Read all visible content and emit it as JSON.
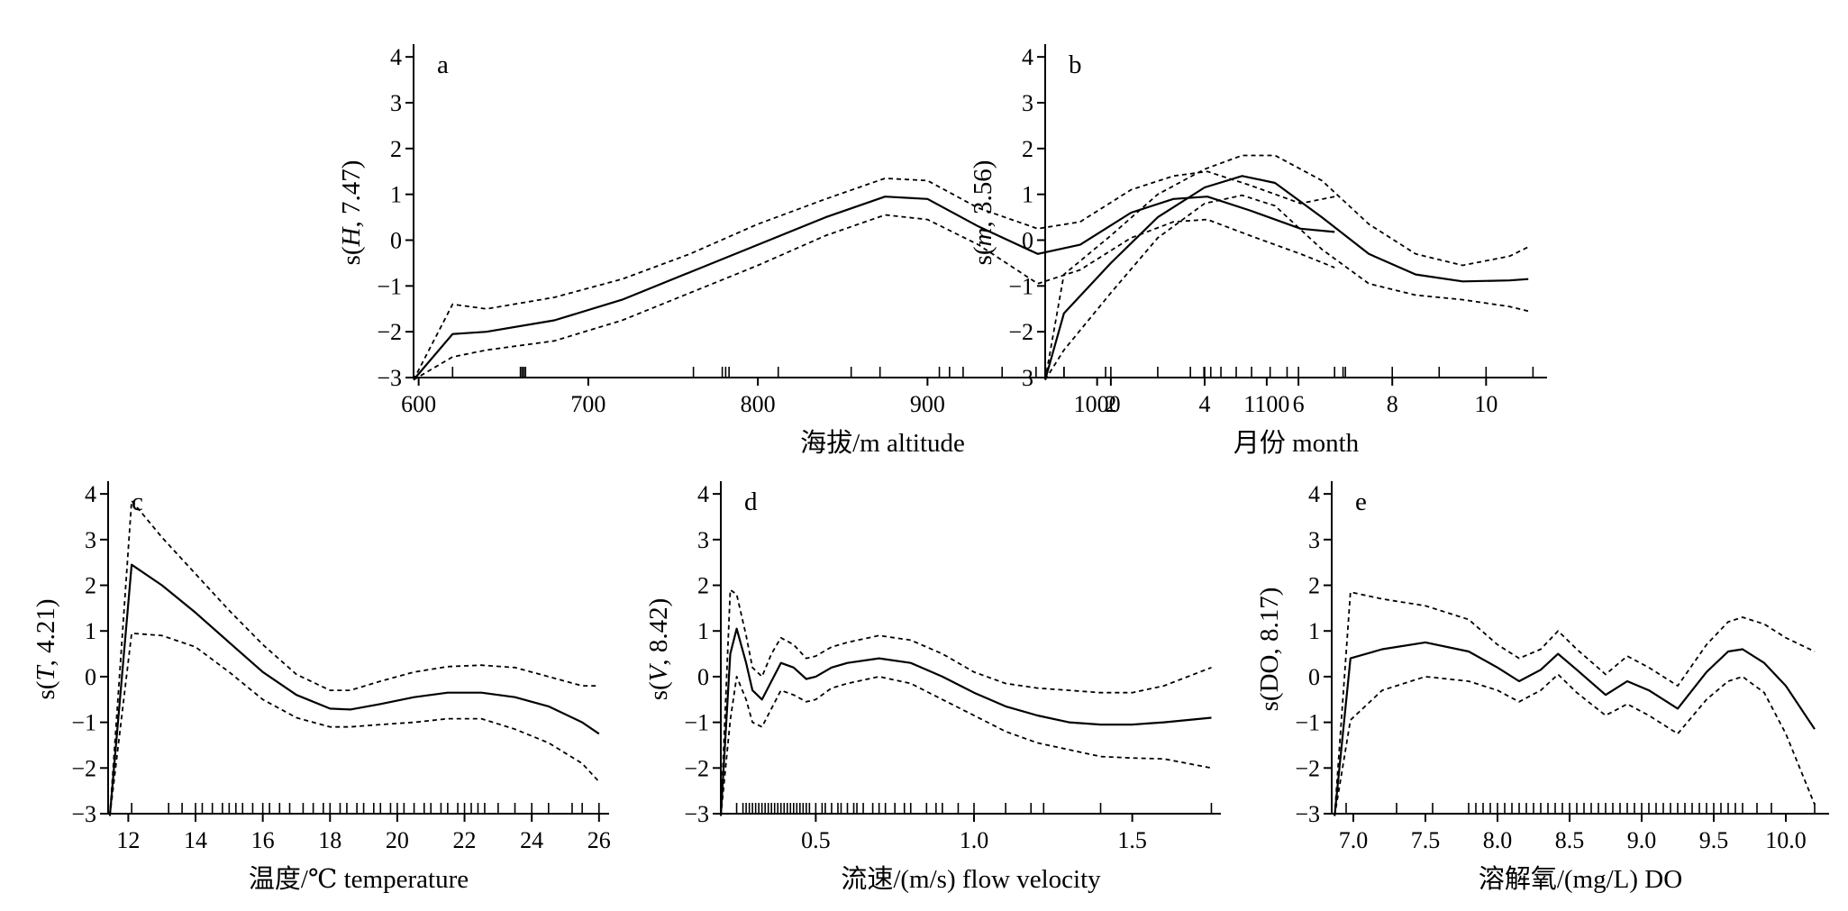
{
  "figure": {
    "panels": [
      {
        "id": "a",
        "panel_label": "a",
        "xlabel": "海拔/m altitude",
        "ylabel_prefix": "s(",
        "ylabel_var": "H",
        "ylabel_suffix": ", 7.47)",
        "xlim": [
          597,
          1150
        ],
        "ylim": [
          -3,
          4.2
        ],
        "xticks": [
          600,
          700,
          800,
          900,
          1000,
          1100
        ],
        "xtick_labels": [
          "600",
          "700",
          "800",
          "900",
          "1000",
          "1100"
        ],
        "yticks": [
          -3,
          -2,
          -1,
          0,
          1,
          2,
          3,
          4
        ],
        "ytick_labels": [
          "−3",
          "−2",
          "−1",
          "0",
          "1",
          "2",
          "3",
          "4"
        ]
      },
      {
        "id": "b",
        "panel_label": "b",
        "xlabel": "月份 month",
        "ylabel_prefix": "s(",
        "ylabel_var": "m",
        "ylabel_suffix": ", 3.56)",
        "xlim": [
          0.6,
          11.3
        ],
        "ylim": [
          -3,
          4.2
        ],
        "xticks": [
          2,
          4,
          6,
          8,
          10
        ],
        "xtick_labels": [
          "2",
          "4",
          "6",
          "8",
          "10"
        ],
        "yticks": [
          -3,
          -2,
          -1,
          0,
          1,
          2,
          3,
          4
        ],
        "ytick_labels": [
          "−3",
          "−2",
          "−1",
          "0",
          "1",
          "2",
          "3",
          "4"
        ]
      },
      {
        "id": "c",
        "panel_label": "c",
        "xlabel": "温度/℃  temperature",
        "ylabel_prefix": "s(",
        "ylabel_var": "T",
        "ylabel_suffix": ", 4.21)",
        "xlim": [
          11.4,
          26.3
        ],
        "ylim": [
          -3,
          4.2
        ],
        "xticks": [
          12,
          14,
          16,
          18,
          20,
          22,
          24,
          26
        ],
        "xtick_labels": [
          "12",
          "14",
          "16",
          "18",
          "20",
          "22",
          "24",
          "26"
        ],
        "yticks": [
          -3,
          -2,
          -1,
          0,
          1,
          2,
          3,
          4
        ],
        "ytick_labels": [
          "−3",
          "−2",
          "−1",
          "0",
          "1",
          "2",
          "3",
          "4"
        ]
      },
      {
        "id": "d",
        "panel_label": "d",
        "xlabel": "流速/(m/s) flow velocity",
        "ylabel_prefix": "s(",
        "ylabel_var": "V",
        "ylabel_suffix": ", 8.42)",
        "xlim": [
          0.2,
          1.78
        ],
        "ylim": [
          -3,
          4.2
        ],
        "xticks": [
          0.5,
          1.0,
          1.5
        ],
        "xtick_labels": [
          "0.5",
          "1.0",
          "1.5"
        ],
        "yticks": [
          -3,
          -2,
          -1,
          0,
          1,
          2,
          3,
          4
        ],
        "ytick_labels": [
          "−3",
          "−2",
          "−1",
          "0",
          "1",
          "2",
          "3",
          "4"
        ]
      },
      {
        "id": "e",
        "panel_label": "e",
        "xlabel": "溶解氧/(mg/L) DO",
        "ylabel_prefix": "s(",
        "ylabel_var": "DO",
        "ylabel_suffix": ", 8.17)",
        "xlim": [
          6.85,
          10.3
        ],
        "ylim": [
          -3,
          4.2
        ],
        "xticks": [
          7.0,
          7.5,
          8.0,
          8.5,
          9.0,
          9.5,
          10.0
        ],
        "xtick_labels": [
          "7.0",
          "7.5",
          "8.0",
          "8.5",
          "9.0",
          "9.5",
          "10.0"
        ],
        "yticks": [
          -3,
          -2,
          -1,
          0,
          1,
          2,
          3,
          4
        ],
        "ytick_labels": [
          "−3",
          "−2",
          "−1",
          "0",
          "1",
          "2",
          "3",
          "4"
        ]
      }
    ]
  },
  "chart_data": [
    {
      "type": "line",
      "panel": "a",
      "series": [
        {
          "role": "fit",
          "style": "solid",
          "x": [
            597,
            620,
            640,
            680,
            720,
            760,
            800,
            840,
            875,
            900,
            930,
            965,
            990,
            1020,
            1045,
            1065,
            1090,
            1120,
            1140
          ],
          "y": [
            -3.05,
            -2.05,
            -2.0,
            -1.75,
            -1.3,
            -0.7,
            -0.1,
            0.5,
            0.95,
            0.9,
            0.3,
            -0.3,
            -0.1,
            0.6,
            0.9,
            0.95,
            0.65,
            0.25,
            0.18
          ]
        },
        {
          "role": "upper",
          "style": "dashed",
          "x": [
            597,
            620,
            640,
            680,
            720,
            760,
            800,
            840,
            875,
            900,
            930,
            965,
            990,
            1020,
            1045,
            1065,
            1090,
            1120,
            1140
          ],
          "y": [
            -3.05,
            -1.4,
            -1.5,
            -1.25,
            -0.85,
            -0.3,
            0.35,
            0.9,
            1.35,
            1.3,
            0.7,
            0.25,
            0.4,
            1.1,
            1.4,
            1.5,
            1.2,
            0.8,
            0.95
          ]
        },
        {
          "role": "lower",
          "style": "dashed",
          "x": [
            597,
            620,
            640,
            680,
            720,
            760,
            800,
            840,
            875,
            900,
            930,
            965,
            990,
            1020,
            1045,
            1065,
            1090,
            1120,
            1140
          ],
          "y": [
            -3.05,
            -2.55,
            -2.4,
            -2.2,
            -1.75,
            -1.15,
            -0.55,
            0.1,
            0.55,
            0.45,
            -0.1,
            -0.95,
            -0.65,
            0.05,
            0.4,
            0.45,
            0.1,
            -0.3,
            -0.6
          ]
        }
      ],
      "rug": [
        620,
        660,
        661,
        662,
        663,
        762,
        779,
        781,
        783,
        812,
        855,
        872,
        907,
        913,
        921,
        944,
        964,
        1005,
        1055,
        1063,
        1067,
        1073,
        1082,
        1102,
        1112,
        1140,
        1145
      ]
    },
    {
      "type": "line",
      "panel": "b",
      "series": [
        {
          "role": "fit",
          "style": "solid",
          "x": [
            0.6,
            1,
            2,
            3,
            4,
            4.8,
            5.5,
            6.5,
            7.5,
            8.5,
            9.5,
            10.5,
            10.9
          ],
          "y": [
            -3.05,
            -1.6,
            -0.5,
            0.5,
            1.15,
            1.4,
            1.25,
            0.5,
            -0.3,
            -0.75,
            -0.9,
            -0.88,
            -0.85
          ]
        },
        {
          "role": "upper",
          "style": "dashed",
          "x": [
            0.6,
            1,
            2,
            3,
            4,
            4.8,
            5.5,
            6.5,
            7.5,
            8.5,
            9.5,
            10.5,
            10.9
          ],
          "y": [
            -3.05,
            -0.75,
            0.1,
            1.0,
            1.55,
            1.85,
            1.85,
            1.3,
            0.35,
            -0.3,
            -0.55,
            -0.35,
            -0.15
          ]
        },
        {
          "role": "lower",
          "style": "dashed",
          "x": [
            0.6,
            1,
            2,
            3,
            4,
            4.8,
            5.5,
            6.5,
            7.5,
            8.5,
            9.5,
            10.5,
            10.9
          ],
          "y": [
            -3.05,
            -2.4,
            -1.15,
            0.05,
            0.8,
            0.98,
            0.75,
            -0.2,
            -0.95,
            -1.2,
            -1.3,
            -1.45,
            -1.55
          ]
        }
      ],
      "rug": [
        1,
        1,
        1,
        2,
        3,
        4,
        5,
        6,
        7,
        8,
        9,
        10,
        11
      ]
    },
    {
      "type": "line",
      "panel": "c",
      "series": [
        {
          "role": "fit",
          "style": "solid",
          "x": [
            11.45,
            12.1,
            13,
            14,
            15,
            16,
            17,
            18,
            18.6,
            19.5,
            20.5,
            21.5,
            22.5,
            23.5,
            24.5,
            25.5,
            26
          ],
          "y": [
            -3.05,
            2.45,
            2.0,
            1.4,
            0.75,
            0.1,
            -0.4,
            -0.7,
            -0.72,
            -0.6,
            -0.45,
            -0.35,
            -0.35,
            -0.45,
            -0.65,
            -1.0,
            -1.25
          ]
        },
        {
          "role": "upper",
          "style": "dashed",
          "x": [
            11.45,
            12.1,
            13,
            14,
            15,
            16,
            17,
            18,
            18.6,
            19.5,
            20.5,
            21.5,
            22.5,
            23.5,
            24.5,
            25.5,
            26
          ],
          "y": [
            -3.05,
            3.85,
            3.05,
            2.25,
            1.45,
            0.7,
            0.05,
            -0.3,
            -0.3,
            -0.1,
            0.1,
            0.22,
            0.25,
            0.2,
            0.0,
            -0.2,
            -0.2
          ]
        },
        {
          "role": "lower",
          "style": "dashed",
          "x": [
            11.45,
            12.1,
            13,
            14,
            15,
            16,
            17,
            18,
            18.6,
            19.5,
            20.5,
            21.5,
            22.5,
            23.5,
            24.5,
            25.5,
            26
          ],
          "y": [
            -3.05,
            0.95,
            0.9,
            0.65,
            0.1,
            -0.5,
            -0.9,
            -1.1,
            -1.1,
            -1.05,
            -1.0,
            -0.92,
            -0.92,
            -1.15,
            -1.45,
            -1.9,
            -2.3
          ]
        }
      ],
      "rug": [
        12.1,
        13.2,
        13.6,
        14.0,
        14.2,
        14.5,
        14.8,
        15.0,
        15.2,
        15.4,
        15.7,
        16.0,
        16.2,
        16.5,
        16.8,
        17.2,
        17.5,
        17.8,
        18.0,
        18.3,
        18.5,
        18.8,
        19.0,
        19.3,
        19.5,
        19.8,
        20.0,
        20.2,
        20.5,
        20.8,
        21.0,
        21.3,
        21.5,
        21.8,
        22.0,
        22.2,
        22.4,
        22.6,
        23.0,
        23.5,
        24.0,
        24.5,
        25.2,
        25.5,
        26.0
      ]
    },
    {
      "type": "line",
      "panel": "d",
      "series": [
        {
          "role": "fit",
          "style": "solid",
          "x": [
            0.2,
            0.23,
            0.25,
            0.28,
            0.3,
            0.33,
            0.36,
            0.39,
            0.43,
            0.47,
            0.5,
            0.55,
            0.6,
            0.7,
            0.8,
            0.9,
            1.0,
            1.1,
            1.2,
            1.3,
            1.4,
            1.5,
            1.6,
            1.75
          ],
          "y": [
            -3.05,
            0.5,
            1.05,
            0.3,
            -0.3,
            -0.5,
            -0.1,
            0.3,
            0.2,
            -0.05,
            0.0,
            0.2,
            0.3,
            0.4,
            0.3,
            0.0,
            -0.35,
            -0.65,
            -0.85,
            -1.0,
            -1.05,
            -1.05,
            -1.0,
            -0.9
          ]
        },
        {
          "role": "upper",
          "style": "dashed",
          "x": [
            0.2,
            0.23,
            0.25,
            0.28,
            0.3,
            0.33,
            0.36,
            0.39,
            0.43,
            0.47,
            0.5,
            0.55,
            0.6,
            0.7,
            0.8,
            0.9,
            1.0,
            1.1,
            1.2,
            1.3,
            1.4,
            1.5,
            1.6,
            1.75
          ],
          "y": [
            -3.05,
            1.9,
            1.8,
            0.9,
            0.2,
            0.0,
            0.5,
            0.85,
            0.7,
            0.4,
            0.45,
            0.65,
            0.75,
            0.9,
            0.8,
            0.5,
            0.1,
            -0.15,
            -0.25,
            -0.3,
            -0.35,
            -0.35,
            -0.2,
            0.2
          ]
        },
        {
          "role": "lower",
          "style": "dashed",
          "x": [
            0.2,
            0.23,
            0.25,
            0.28,
            0.3,
            0.33,
            0.36,
            0.39,
            0.43,
            0.47,
            0.5,
            0.55,
            0.6,
            0.7,
            0.8,
            0.9,
            1.0,
            1.1,
            1.2,
            1.3,
            1.4,
            1.5,
            1.6,
            1.75
          ],
          "y": [
            -3.05,
            -0.95,
            0.0,
            -0.5,
            -1.0,
            -1.1,
            -0.7,
            -0.3,
            -0.4,
            -0.55,
            -0.5,
            -0.25,
            -0.15,
            0.0,
            -0.15,
            -0.5,
            -0.85,
            -1.2,
            -1.45,
            -1.6,
            -1.75,
            -1.78,
            -1.8,
            -2.0
          ]
        }
      ],
      "rug": [
        0.25,
        0.27,
        0.28,
        0.29,
        0.3,
        0.31,
        0.32,
        0.33,
        0.34,
        0.35,
        0.36,
        0.37,
        0.38,
        0.39,
        0.4,
        0.41,
        0.42,
        0.43,
        0.44,
        0.45,
        0.46,
        0.47,
        0.48,
        0.5,
        0.52,
        0.53,
        0.55,
        0.57,
        0.58,
        0.6,
        0.62,
        0.63,
        0.65,
        0.68,
        0.7,
        0.72,
        0.75,
        0.78,
        0.8,
        0.85,
        0.88,
        0.9,
        0.95,
        1.0,
        1.1,
        1.18,
        1.22,
        1.4,
        1.75
      ]
    },
    {
      "type": "line",
      "panel": "e",
      "series": [
        {
          "role": "fit",
          "style": "solid",
          "x": [
            6.87,
            6.98,
            7.2,
            7.5,
            7.8,
            8.0,
            8.15,
            8.3,
            8.42,
            8.55,
            8.75,
            8.9,
            9.05,
            9.25,
            9.45,
            9.6,
            9.7,
            9.85,
            10.0,
            10.2
          ],
          "y": [
            -3.05,
            0.4,
            0.6,
            0.75,
            0.55,
            0.2,
            -0.1,
            0.15,
            0.5,
            0.15,
            -0.4,
            -0.1,
            -0.3,
            -0.7,
            0.1,
            0.55,
            0.6,
            0.3,
            -0.2,
            -1.15
          ]
        },
        {
          "role": "upper",
          "style": "dashed",
          "x": [
            6.87,
            6.98,
            7.2,
            7.5,
            7.8,
            8.0,
            8.15,
            8.3,
            8.42,
            8.55,
            8.75,
            8.9,
            9.05,
            9.25,
            9.45,
            9.6,
            9.7,
            9.85,
            10.0,
            10.2
          ],
          "y": [
            -3.05,
            1.85,
            1.7,
            1.55,
            1.25,
            0.7,
            0.4,
            0.6,
            1.0,
            0.6,
            0.05,
            0.45,
            0.2,
            -0.2,
            0.7,
            1.2,
            1.3,
            1.15,
            0.85,
            0.55
          ]
        },
        {
          "role": "lower",
          "style": "dashed",
          "x": [
            6.87,
            6.98,
            7.2,
            7.5,
            7.8,
            8.0,
            8.15,
            8.3,
            8.42,
            8.55,
            8.75,
            8.9,
            9.05,
            9.25,
            9.45,
            9.6,
            9.7,
            9.85,
            10.0,
            10.2
          ],
          "y": [
            -3.05,
            -0.95,
            -0.3,
            0.0,
            -0.1,
            -0.3,
            -0.55,
            -0.3,
            0.05,
            -0.35,
            -0.85,
            -0.6,
            -0.85,
            -1.25,
            -0.5,
            -0.1,
            0.0,
            -0.35,
            -1.25,
            -2.8
          ]
        }
      ],
      "rug": [
        6.95,
        7.3,
        7.55,
        7.8,
        7.85,
        7.9,
        7.95,
        8.0,
        8.05,
        8.1,
        8.15,
        8.2,
        8.25,
        8.3,
        8.35,
        8.4,
        8.45,
        8.5,
        8.55,
        8.6,
        8.65,
        8.7,
        8.75,
        8.8,
        8.85,
        8.9,
        8.95,
        9.0,
        9.05,
        9.1,
        9.15,
        9.2,
        9.25,
        9.3,
        9.35,
        9.4,
        9.45,
        9.5,
        9.55,
        9.6,
        9.65,
        9.7,
        9.8,
        9.9,
        10.2
      ]
    }
  ]
}
